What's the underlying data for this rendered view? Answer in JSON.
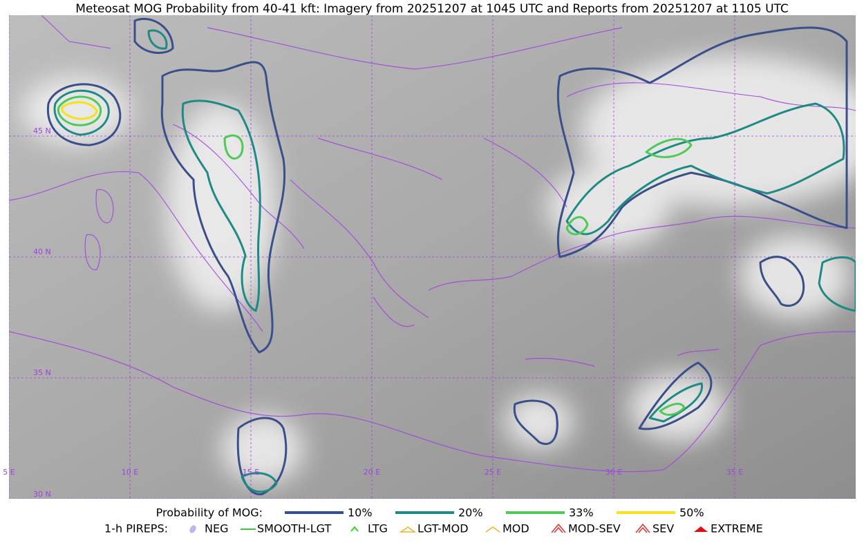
{
  "title": "Meteosat MOG Probability from 40-41 kft: Imagery from 20251207 at 1045 UTC and Reports from 20251207 at 1105 UTC",
  "map": {
    "lat_labels": [
      "45 N",
      "40 N",
      "35 N",
      "30 N"
    ],
    "lon_labels": [
      "5 E",
      "10 E",
      "15 E",
      "20 E",
      "25 E",
      "30 E",
      "35 E"
    ],
    "grid_color": "#a040e0"
  },
  "legend": {
    "probability": {
      "label": "Probability of MOG:",
      "items": [
        {
          "label": "10%",
          "color": "#3a4f8a"
        },
        {
          "label": "20%",
          "color": "#1f8a84"
        },
        {
          "label": "33%",
          "color": "#4ec95a"
        },
        {
          "label": "50%",
          "color": "#f5e21a"
        }
      ]
    },
    "pireps": {
      "label": "1-h PIREPS:",
      "items": [
        {
          "label": "NEG",
          "color": "#b8b8f0"
        },
        {
          "label": "SMOOTH-LGT",
          "color": "#33cc33"
        },
        {
          "label": "LTG",
          "color": "#22dd22"
        },
        {
          "label": "LGT-MOD",
          "color": "#f0b020"
        },
        {
          "label": "MOD",
          "color": "#f0b020"
        },
        {
          "label": "MOD-SEV",
          "color": "#e03030"
        },
        {
          "label": "SEV",
          "color": "#e03030"
        },
        {
          "label": "EXTREME",
          "color": "#e01010"
        }
      ]
    }
  }
}
